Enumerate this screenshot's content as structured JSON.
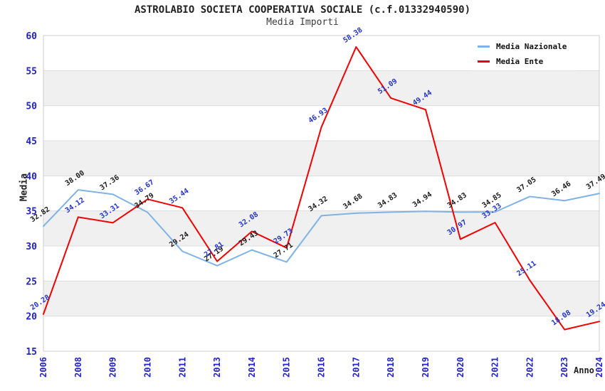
{
  "chart_data": {
    "type": "line",
    "title": "ASTROLABIO SOCIETA COOPERATIVA SOCIALE (c.f.01332940590)",
    "subtitle": "Media Importi",
    "xlabel": "Anno",
    "ylabel": "Media",
    "ylim": [
      15,
      60
    ],
    "yticks": [
      15,
      20,
      25,
      30,
      35,
      40,
      45,
      50,
      55,
      60
    ],
    "grid": "horizontal",
    "band_fill": "alternating-gray",
    "legend_position": "top-right",
    "categories": [
      "2006",
      "2008",
      "2009",
      "2010",
      "2011",
      "2013",
      "2014",
      "2015",
      "2016",
      "2017",
      "2018",
      "2019",
      "2020",
      "2021",
      "2022",
      "2023",
      "2024"
    ],
    "series": [
      {
        "name": "Media Nazionale",
        "color": "#7FB2E5",
        "label_color": "#1A1A1A",
        "values": [
          32.82,
          38.0,
          37.36,
          34.79,
          29.24,
          27.19,
          29.43,
          27.71,
          34.32,
          34.68,
          34.83,
          34.94,
          34.83,
          34.85,
          37.05,
          36.46,
          37.49
        ]
      },
      {
        "name": "Media Ente",
        "color": "#F00000",
        "label_color": "#2233CC",
        "values": [
          20.28,
          34.12,
          33.31,
          36.67,
          35.44,
          27.81,
          32.08,
          29.73,
          46.93,
          58.38,
          51.09,
          49.44,
          30.97,
          33.33,
          25.11,
          18.08,
          19.24
        ]
      }
    ],
    "colors": {
      "axis_tick_text": "#2222CC",
      "band_gray": "#F0F0F0",
      "gridline": "#DCDCDC",
      "plot_border": "#CCCCCC",
      "title_text": "#222222"
    }
  }
}
